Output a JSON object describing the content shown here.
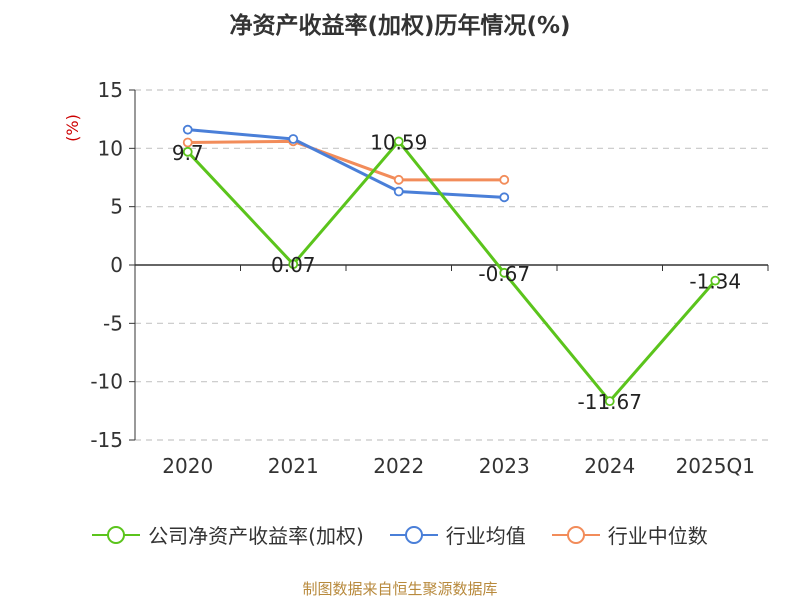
{
  "title": "净资产收益率(加权)历年情况(%)",
  "source": "制图数据来自恒生聚源数据库",
  "chart_data": {
    "type": "line",
    "title": "净资产收益率(加权)历年情况(%)",
    "ylabel": "(%)",
    "xlabel": "",
    "ylim": [
      -15,
      15
    ],
    "yticks": [
      15,
      10,
      5,
      0,
      -5,
      -10,
      -15
    ],
    "grid": true,
    "legend_position": "bottom",
    "categories": [
      "2020",
      "2021",
      "2022",
      "2023",
      "2024",
      "2025Q1"
    ],
    "series": [
      {
        "name": "公司净资产收益率(加权)",
        "color": "#5bc41c",
        "values": [
          9.7,
          0.07,
          10.59,
          -0.67,
          -11.67,
          -1.34
        ],
        "labels": [
          "9.7",
          "0.07",
          "10.59",
          "-0.67",
          "-11.67",
          "-1.34"
        ]
      },
      {
        "name": "行业均值",
        "color": "#4a7fd8",
        "values": [
          11.6,
          10.8,
          6.3,
          5.8,
          null,
          null
        ]
      },
      {
        "name": "行业中位数",
        "color": "#f28c5a",
        "values": [
          10.5,
          10.6,
          7.3,
          7.3,
          null,
          null
        ]
      }
    ]
  }
}
